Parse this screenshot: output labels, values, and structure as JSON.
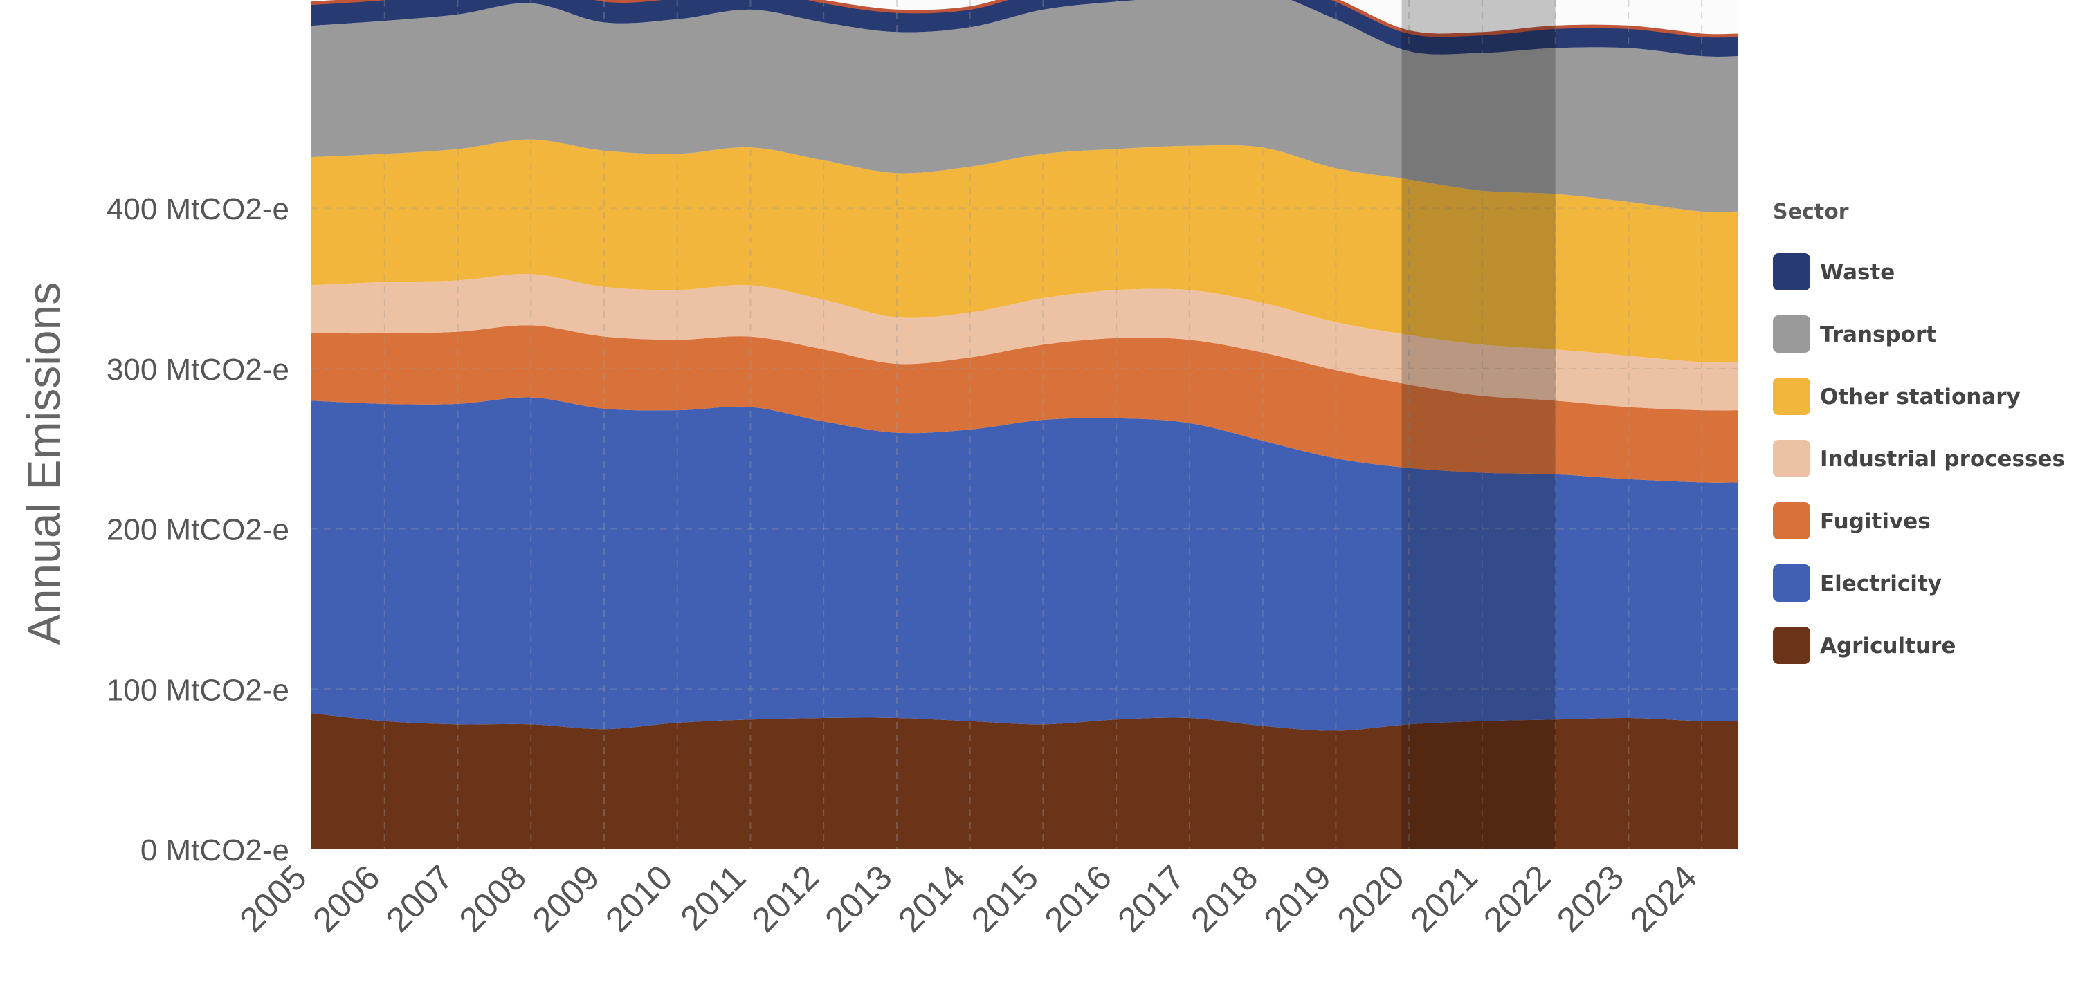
{
  "chart_data": {
    "type": "area",
    "stacked": true,
    "ylabel": "Annual Emissions",
    "y_ticks": [
      {
        "value": 0,
        "label": "0 MtCO2-e"
      },
      {
        "value": 100,
        "label": "100 MtCO2-e"
      },
      {
        "value": 200,
        "label": "200 MtCO2-e"
      },
      {
        "value": 300,
        "label": "300 MtCO2-e"
      },
      {
        "value": 400,
        "label": "400 MtCO2-e"
      }
    ],
    "x_ticks": [
      "2005",
      "2006",
      "2007",
      "2008",
      "2009",
      "2010",
      "2011",
      "2012",
      "2013",
      "2014",
      "2015",
      "2016",
      "2017",
      "2018",
      "2019",
      "2020",
      "2021",
      "2022",
      "2023",
      "2024"
    ],
    "x_range": [
      2005.0,
      2024.5
    ],
    "ylim": [
      0,
      530
    ],
    "grid": {
      "vertical": true,
      "horizontal": true,
      "style": "dashed"
    },
    "x": [
      2005.0,
      2006.0,
      2007.0,
      2008.0,
      2009.0,
      2010.0,
      2011.0,
      2012.0,
      2013.0,
      2014.0,
      2015.0,
      2016.0,
      2017.0,
      2018.0,
      2019.0,
      2020.0,
      2021.0,
      2022.0,
      2023.0,
      2024.0,
      2024.5
    ],
    "highlight": {
      "x_start": 2019.9,
      "x_end": 2022.0,
      "color": "#000000",
      "opacity": 0.22
    },
    "legend": {
      "title": "Sector",
      "position": "right"
    },
    "series": [
      {
        "name": "Agriculture",
        "color": "#6B3318",
        "values": [
          85,
          80,
          78,
          78,
          75,
          79,
          81,
          82,
          82,
          80,
          78,
          81,
          82,
          77,
          74,
          78,
          80,
          81,
          82,
          80,
          80
        ]
      },
      {
        "name": "Electricity",
        "color": "#4260B3",
        "values": [
          195,
          198,
          200,
          204,
          200,
          195,
          195,
          185,
          178,
          182,
          190,
          188,
          184,
          178,
          170,
          160,
          155,
          153,
          149,
          149,
          149
        ]
      },
      {
        "name": "Fugitives",
        "color": "#D9723A",
        "values": [
          42,
          44,
          45,
          45,
          45,
          44,
          44,
          45,
          43,
          45,
          47,
          50,
          52,
          55,
          55,
          52,
          48,
          46,
          45,
          45,
          45
        ]
      },
      {
        "name": "Industrial processes",
        "color": "#EDC2A4",
        "values": [
          30,
          32,
          32,
          32,
          31,
          31,
          32,
          31,
          29,
          28,
          29,
          30,
          31,
          31,
          30,
          31,
          32,
          32,
          32,
          30,
          30
        ]
      },
      {
        "name": "Other stationary",
        "color": "#F2B63C",
        "values": [
          80,
          80,
          82,
          84,
          85,
          85,
          86,
          87,
          90,
          91,
          90,
          88,
          90,
          97,
          96,
          97,
          96,
          97,
          96,
          94,
          94
        ]
      },
      {
        "name": "Transport",
        "color": "#9A9A9A",
        "values": [
          82,
          83,
          84,
          85,
          80,
          84,
          86,
          86,
          88,
          87,
          90,
          92,
          93,
          97,
          93,
          80,
          86,
          91,
          96,
          97,
          97
        ]
      },
      {
        "name": "Waste",
        "color": "#283A72",
        "values": [
          14,
          14,
          15,
          15,
          14,
          14,
          14,
          13,
          13,
          12,
          13,
          13,
          12,
          12,
          12,
          12,
          12,
          13,
          13,
          13,
          13
        ]
      }
    ]
  }
}
